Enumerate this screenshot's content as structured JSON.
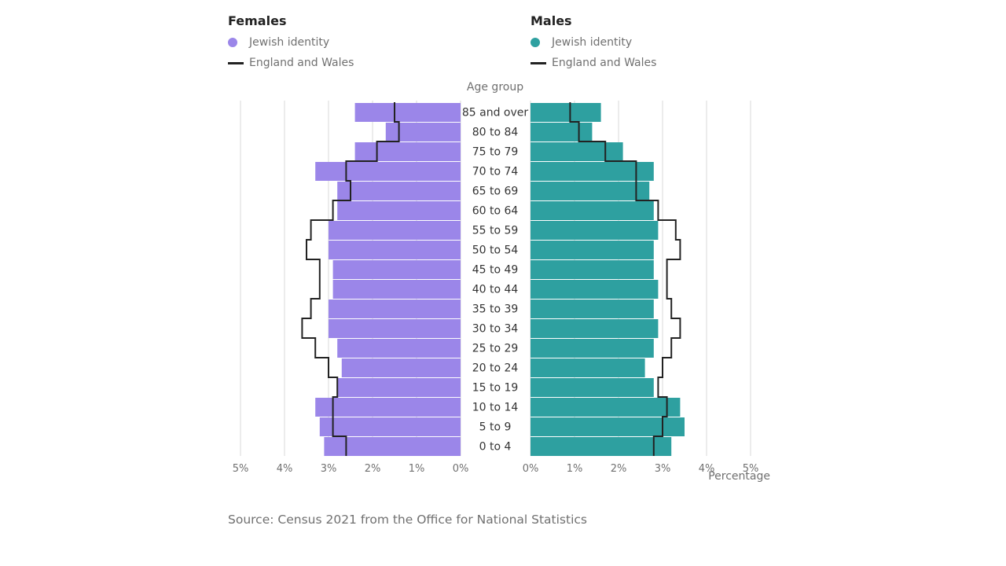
{
  "legend": {
    "females_title": "Females",
    "males_title": "Males",
    "series_label": "Jewish identity",
    "line_label": "England and Wales"
  },
  "source": "Source: Census 2021 from the Office for National Statistics",
  "colors": {
    "female": "#9b86e9",
    "male": "#2ea0a0",
    "line": "#222222",
    "grid": "#d9d9d9",
    "text": "#707070"
  },
  "chart_data": {
    "type": "bar",
    "title": "",
    "age_axis_label": "Age group",
    "x_axis_label": "Percentage",
    "xlim": [
      0,
      5
    ],
    "x_ticks": [
      "0%",
      "1%",
      "2%",
      "3%",
      "4%",
      "5%"
    ],
    "categories": [
      "85 and over",
      "80 to 84",
      "75 to 79",
      "70 to 74",
      "65 to 69",
      "60 to 64",
      "55 to 59",
      "50 to 54",
      "45 to 49",
      "40 to 44",
      "35 to 39",
      "30 to 34",
      "25 to 29",
      "20 to 24",
      "15 to 19",
      "10 to 14",
      "5 to 9",
      "0 to 4"
    ],
    "series": [
      {
        "name": "Females - Jewish identity",
        "values": [
          2.4,
          1.7,
          2.4,
          3.3,
          2.8,
          2.8,
          3.0,
          3.0,
          2.9,
          2.9,
          3.0,
          3.0,
          2.8,
          2.7,
          2.8,
          3.3,
          3.2,
          3.1
        ]
      },
      {
        "name": "Females - England and Wales",
        "values": [
          1.5,
          1.4,
          1.9,
          2.6,
          2.5,
          2.9,
          3.4,
          3.5,
          3.2,
          3.2,
          3.4,
          3.6,
          3.3,
          3.0,
          2.8,
          2.9,
          2.9,
          2.6
        ]
      },
      {
        "name": "Males - Jewish identity",
        "values": [
          1.6,
          1.4,
          2.1,
          2.8,
          2.7,
          2.8,
          2.9,
          2.8,
          2.8,
          2.9,
          2.8,
          2.9,
          2.8,
          2.6,
          2.8,
          3.4,
          3.5,
          3.2
        ]
      },
      {
        "name": "Males - England and Wales",
        "values": [
          0.9,
          1.1,
          1.7,
          2.4,
          2.4,
          2.9,
          3.3,
          3.4,
          3.1,
          3.1,
          3.2,
          3.4,
          3.2,
          3.0,
          2.9,
          3.1,
          3.0,
          2.8
        ]
      }
    ]
  }
}
